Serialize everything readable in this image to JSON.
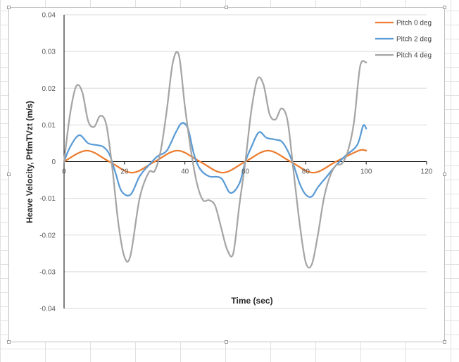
{
  "chart_data": {
    "type": "line",
    "xlabel": "Time (sec)",
    "ylabel": "Heave Velocity, PtfmTVzt  (m/s)",
    "xlim": [
      0,
      120
    ],
    "ylim": [
      -0.04,
      0.04
    ],
    "x_ticks": [
      0,
      20,
      40,
      60,
      80,
      100,
      120
    ],
    "y_ticks": [
      -0.04,
      -0.03,
      -0.02,
      -0.01,
      0,
      0.01,
      0.02,
      0.03,
      0.04
    ],
    "y_tick_labels": [
      "-0.04",
      "-0.03",
      "-0.02",
      "-0.01",
      "0",
      "0.01",
      "0.02",
      "0.03",
      "0.04"
    ],
    "grid": "horizontal",
    "legend_position": "top-right",
    "smooth": true,
    "series": [
      {
        "name": "Pitch 0 deg",
        "color": "#ed7d31",
        "x": [
          0,
          7.5,
          15,
          22.5,
          30,
          37.5,
          45,
          52.5,
          60,
          67.5,
          75,
          82.5,
          90,
          97.5,
          100
        ],
        "y": [
          0,
          0.003,
          0,
          -0.003,
          0,
          0.003,
          0,
          -0.003,
          0,
          0.003,
          0,
          -0.003,
          0,
          0.003,
          0.003
        ]
      },
      {
        "name": "Pitch 2 deg",
        "color": "#5b9bd5",
        "x": [
          0,
          2,
          5,
          8,
          11,
          13,
          15,
          17,
          19,
          22,
          25,
          28,
          31,
          34,
          37,
          39,
          41,
          43,
          45,
          48,
          52,
          55,
          58,
          60,
          62,
          64.5,
          67,
          70,
          72,
          74,
          76,
          78,
          80,
          82,
          84,
          87,
          90,
          93,
          97,
          99,
          100
        ],
        "y": [
          0,
          0.004,
          0.0072,
          0.005,
          0.0045,
          0.004,
          0.002,
          -0.003,
          -0.008,
          -0.009,
          -0.004,
          -0.001,
          0.0015,
          0.003,
          0.008,
          0.0105,
          0.009,
          0.002,
          -0.002,
          -0.004,
          -0.0045,
          -0.0085,
          -0.006,
          0,
          0.004,
          0.008,
          0.0065,
          0.006,
          0.0055,
          0.003,
          -0.001,
          -0.006,
          -0.009,
          -0.0095,
          -0.007,
          -0.004,
          -0.001,
          0.0015,
          0.0045,
          0.0098,
          0.009
        ]
      },
      {
        "name": "Pitch 4 deg",
        "color": "#a5a5a5",
        "x": [
          0,
          2,
          4,
          6,
          8,
          10,
          12,
          14,
          16,
          18,
          20,
          22,
          25,
          28,
          30,
          32,
          34,
          36,
          38,
          40,
          42,
          44,
          46,
          48,
          50,
          52,
          54,
          56,
          58,
          60,
          62,
          64,
          66,
          68,
          70,
          72,
          74,
          76,
          78,
          80,
          82,
          84,
          86,
          88,
          90,
          92,
          94,
          96,
          98,
          100
        ],
        "y": [
          0,
          0.013,
          0.0205,
          0.019,
          0.011,
          0.0095,
          0.0125,
          0.01,
          -0.002,
          -0.017,
          -0.026,
          -0.0255,
          -0.01,
          -0.003,
          -0.0025,
          0.003,
          0.014,
          0.027,
          0.029,
          0.015,
          0.003,
          -0.006,
          -0.0105,
          -0.0105,
          -0.012,
          -0.018,
          -0.024,
          -0.025,
          -0.012,
          0,
          0.014,
          0.0225,
          0.021,
          0.013,
          0.0115,
          0.0145,
          0.011,
          -0.003,
          -0.017,
          -0.0275,
          -0.028,
          -0.02,
          -0.01,
          -0.004,
          -0.001,
          -0.0005,
          0.003,
          0.011,
          0.026,
          0.027
        ]
      }
    ]
  }
}
